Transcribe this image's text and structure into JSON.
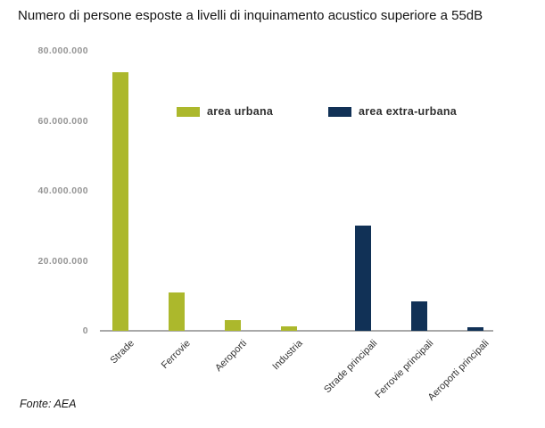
{
  "title": "Numero di persone esposte a livelli di inquinamento acustico superiore a 55dB",
  "source": "Fonte: AEA",
  "legend": [
    {
      "label": "area urbana",
      "color": "#acb82c"
    },
    {
      "label": "area extra-urbana",
      "color": "#113156"
    }
  ],
  "chart_data": {
    "type": "bar",
    "title": "Numero di persone esposte a livelli di inquinamento acustico superiore a 55dB",
    "categories": [
      "Strade",
      "Ferrovie",
      "Aeroporti",
      "Industria",
      "Strade principali",
      "Ferrovie principali",
      "Aeroporti principali"
    ],
    "series": [
      {
        "name": "area urbana",
        "color": "#acb82c",
        "values": [
          74000000,
          11000000,
          3000000,
          1200000,
          null,
          null,
          null
        ]
      },
      {
        "name": "area extra-urbana",
        "color": "#113156",
        "values": [
          null,
          null,
          null,
          null,
          30000000,
          8500000,
          1000000
        ]
      }
    ],
    "xlabel": "",
    "ylabel": "",
    "ylim": [
      0,
      80000000
    ],
    "yticks": [
      {
        "value": 80000000,
        "label": "80.000.000"
      },
      {
        "value": 60000000,
        "label": "60.000.000"
      },
      {
        "value": 40000000,
        "label": "40.000.000"
      },
      {
        "value": 20000000,
        "label": "20.000.000"
      },
      {
        "value": 0,
        "label": "0"
      }
    ],
    "grid": false,
    "legend_position": "top-inside"
  }
}
